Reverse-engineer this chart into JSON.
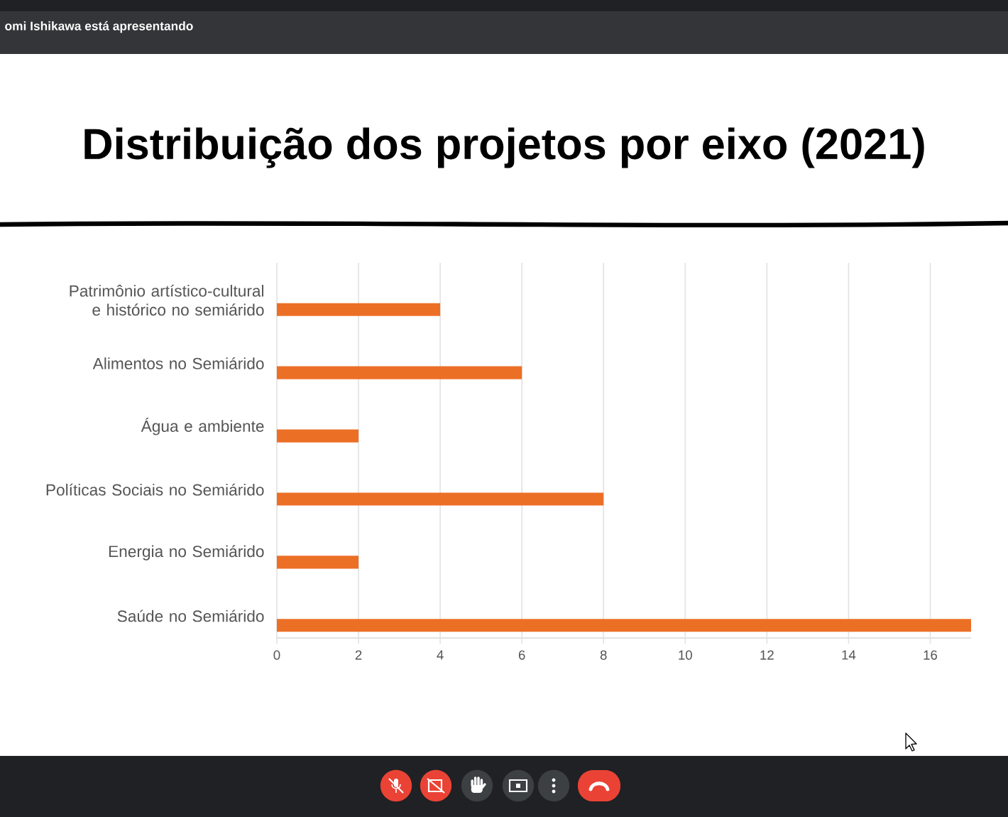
{
  "chart_data": {
    "type": "bar",
    "orientation": "horizontal",
    "title": "Distribuição dos projetos por eixo (2021)",
    "categories": [
      "Patrimônio artístico-cultural e histórico no semiárido",
      "Alimentos no Semiárido",
      "Água e ambiente",
      "Políticas Sociais no Semiárido",
      "Energia no Semiárido",
      "Saúde no Semiárido"
    ],
    "values": [
      4,
      6,
      2,
      8,
      2,
      17
    ],
    "color": "#ec6f26",
    "xlim": [
      0,
      17
    ],
    "xticks": [
      0,
      2,
      4,
      6,
      8,
      10,
      12,
      14,
      16
    ],
    "grid": "x",
    "annotations": [
      "omi Ishikawa está apresentando"
    ]
  }
}
